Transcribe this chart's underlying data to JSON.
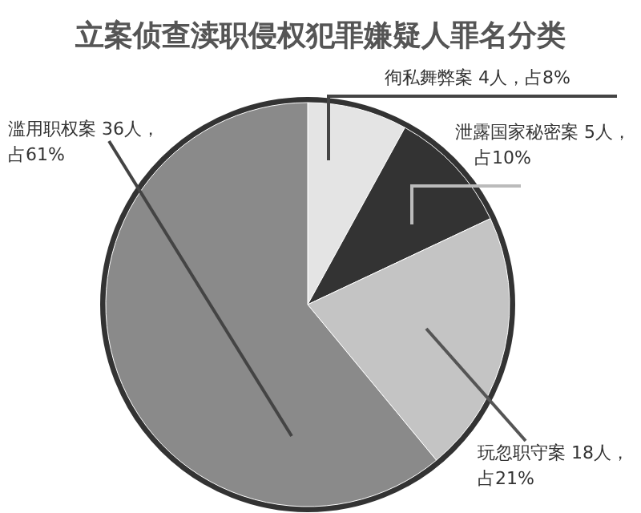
{
  "chart_data": {
    "type": "pie",
    "title": "立案侦查渎职侵权犯罪嫌疑人罪名分类",
    "categories": [
      "徇私舞弊案",
      "泄露国家秘密案",
      "玩忽职守案",
      "滥用职权案"
    ],
    "values": [
      8,
      10,
      21,
      61
    ],
    "value_labels": [
      "4人，占8%",
      "5人，占10%",
      "18人，占21%",
      "36人，占61%"
    ],
    "colors": [
      "#e4e4e4",
      "#333333",
      "#c4c4c4",
      "#8a8a8a"
    ]
  }
}
